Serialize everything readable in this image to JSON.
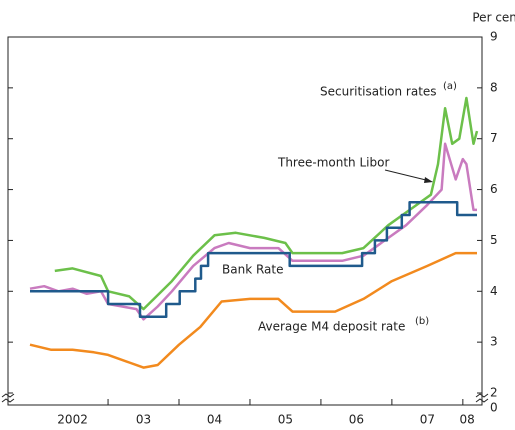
{
  "chart_data": {
    "type": "line",
    "y_unit_label": "Per cent",
    "xlim": [
      2001.59,
      2008.27
    ],
    "ylim": [
      2,
      9
    ],
    "yticks": [
      2,
      3,
      4,
      5,
      6,
      7,
      8,
      9
    ],
    "axis_break_tick": 0,
    "xticks": [
      2003,
      2004,
      2005,
      2006,
      2007,
      2008
    ],
    "x_tick_labels": [
      {
        "value": 2002.5,
        "label": "2002"
      },
      {
        "value": 2003.5,
        "label": "03"
      },
      {
        "value": 2004.5,
        "label": "04"
      },
      {
        "value": 2005.5,
        "label": "05"
      },
      {
        "value": 2006.5,
        "label": "06"
      },
      {
        "value": 2007.5,
        "label": "07"
      },
      {
        "value": 2008.06,
        "label": "08"
      }
    ],
    "series": [
      {
        "name": "Average M4 deposit rate",
        "note_mark": "(b)",
        "color": "#f28a1e",
        "x": [
          2001.9,
          2002.2,
          2002.5,
          2002.8,
          2003.0,
          2003.3,
          2003.5,
          2003.7,
          2004.0,
          2004.3,
          2004.6,
          2005.0,
          2005.4,
          2005.6,
          2006.2,
          2006.6,
          2007.0,
          2007.5,
          2007.9,
          2008.2
        ],
        "values": [
          2.95,
          2.85,
          2.85,
          2.8,
          2.75,
          2.6,
          2.5,
          2.55,
          2.95,
          3.3,
          3.8,
          3.85,
          3.85,
          3.6,
          3.6,
          3.85,
          4.2,
          4.5,
          4.75,
          4.75
        ]
      },
      {
        "name": "Three-month Libor",
        "color": "#c97bbf",
        "x": [
          2001.9,
          2002.1,
          2002.3,
          2002.5,
          2002.7,
          2002.9,
          2003.0,
          2003.2,
          2003.4,
          2003.5,
          2003.7,
          2003.9,
          2004.2,
          2004.5,
          2004.7,
          2005.0,
          2005.4,
          2005.6,
          2006.3,
          2006.6,
          2006.9,
          2007.2,
          2007.5,
          2007.7,
          2007.75,
          2007.9,
          2008.0,
          2008.05,
          2008.15,
          2008.2
        ],
        "values": [
          4.05,
          4.1,
          4.0,
          4.05,
          3.95,
          4.0,
          3.75,
          3.7,
          3.65,
          3.45,
          3.7,
          4.0,
          4.5,
          4.85,
          4.95,
          4.85,
          4.85,
          4.6,
          4.6,
          4.7,
          5.0,
          5.3,
          5.7,
          6.0,
          6.9,
          6.2,
          6.6,
          6.5,
          5.6,
          5.6
        ]
      },
      {
        "name": "Securitisation rates",
        "note_mark": "(a)",
        "color": "#6cc04a",
        "x": [
          2002.25,
          2002.5,
          2002.9,
          2003.0,
          2003.3,
          2003.5,
          2003.9,
          2004.2,
          2004.5,
          2004.8,
          2005.2,
          2005.5,
          2005.6,
          2006.3,
          2006.6,
          2006.95,
          2007.3,
          2007.55,
          2007.65,
          2007.75,
          2007.85,
          2007.95,
          2008.05,
          2008.15,
          2008.2
        ],
        "values": [
          4.4,
          4.45,
          4.3,
          4.0,
          3.9,
          3.65,
          4.2,
          4.7,
          5.1,
          5.15,
          5.05,
          4.95,
          4.75,
          4.75,
          4.85,
          5.3,
          5.65,
          5.9,
          6.5,
          7.6,
          6.9,
          7.0,
          7.8,
          6.9,
          7.15
        ]
      },
      {
        "name": "Bank Rate",
        "color": "#1f5a8c",
        "x": [
          2001.9,
          2003.0,
          2003.0,
          2003.45,
          2003.45,
          2003.82,
          2003.82,
          2004.01,
          2004.01,
          2004.23,
          2004.23,
          2004.31,
          2004.31,
          2004.41,
          2004.41,
          2005.56,
          2005.56,
          2006.58,
          2006.58,
          2006.76,
          2006.76,
          2006.93,
          2006.93,
          2007.14,
          2007.14,
          2007.25,
          2007.25,
          2007.92,
          2007.92,
          2008.2
        ],
        "values": [
          4,
          4,
          3.75,
          3.75,
          3.5,
          3.5,
          3.75,
          3.75,
          4,
          4,
          4.25,
          4.25,
          4.5,
          4.5,
          4.75,
          4.75,
          4.5,
          4.5,
          4.75,
          4.75,
          5,
          5,
          5.25,
          5.25,
          5.5,
          5.5,
          5.75,
          5.75,
          5.5,
          5.5
        ]
      }
    ]
  }
}
